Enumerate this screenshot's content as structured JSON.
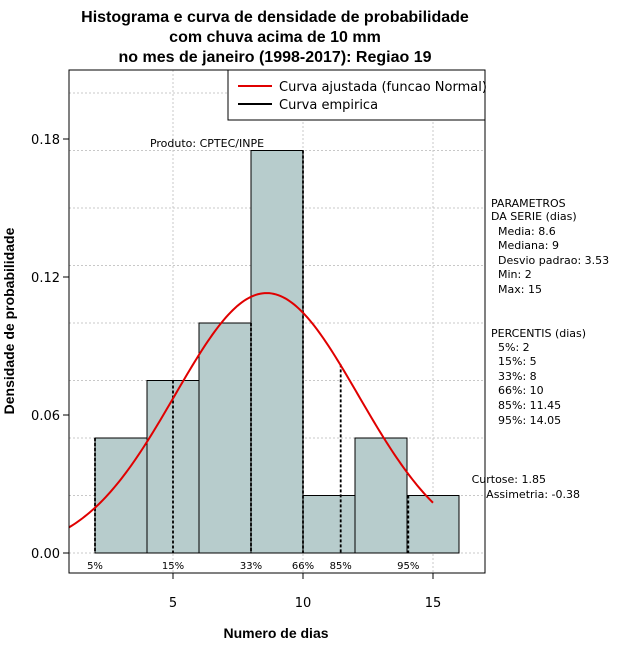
{
  "chart_data": {
    "type": "bar",
    "title_lines": [
      "Histograma e curva de densidade de probabilidade",
      "com chuva acima de 10 mm",
      "no mes de janeiro (1998-2017): Regiao 19"
    ],
    "xlabel": "Numero de dias",
    "ylabel": "Densidade de probabilidade",
    "xlim": [
      1,
      17
    ],
    "ylim": [
      0,
      0.21
    ],
    "x_ticks": [
      5,
      10,
      15
    ],
    "y_ticks": [
      0.0,
      0.06,
      0.12,
      0.18
    ],
    "y_tick_labels": [
      "0.00",
      "0.06",
      "0.12",
      "0.18"
    ],
    "grid": true,
    "bins": [
      {
        "from": 2,
        "to": 4,
        "value": 0.05
      },
      {
        "from": 4,
        "to": 6,
        "value": 0.075
      },
      {
        "from": 6,
        "to": 8,
        "value": 0.1
      },
      {
        "from": 8,
        "to": 10,
        "value": 0.175
      },
      {
        "from": 10,
        "to": 12,
        "value": 0.025
      },
      {
        "from": 12,
        "to": 14,
        "value": 0.05
      },
      {
        "from": 14,
        "to": 16,
        "value": 0.025
      }
    ],
    "bar_color": "#b7cccc",
    "normal_curve": {
      "mean": 8.6,
      "sd": 3.53,
      "color": "#e00000",
      "x_range": [
        1,
        15
      ]
    },
    "percentile_lines": [
      {
        "label": "5%",
        "x": 2,
        "y": 0.05
      },
      {
        "label": "15%",
        "x": 5,
        "y": 0.075
      },
      {
        "label": "33%",
        "x": 8,
        "y": 0.1
      },
      {
        "label": "66%",
        "x": 10,
        "y": 0.175
      },
      {
        "label": "85%",
        "x": 11.45,
        "y": 0.082
      },
      {
        "label": "95%",
        "x": 14.05,
        "y": 0.025
      }
    ],
    "legend": {
      "position": "top-right",
      "items": [
        {
          "label": "Curva ajustada (funcao Normal)",
          "color": "#e00000"
        },
        {
          "label": "Curva empirica",
          "color": "#000000"
        }
      ]
    },
    "annotation": "Produto: CPTEC/INPE",
    "stats_params": {
      "heading": [
        "PARAMETROS",
        "DA SERIE (dias)"
      ],
      "lines": [
        "Media: 8.6",
        "Mediana: 9",
        "Desvio padrao: 3.53",
        "Min: 2",
        "Max: 15"
      ]
    },
    "stats_percentis": {
      "heading": "PERCENTIS (dias)",
      "lines": [
        "5%: 2",
        "15%: 5",
        "33%: 8",
        "66%: 10",
        "85%: 11.45",
        "95%: 14.05"
      ]
    },
    "stats_shape": [
      "Curtose: 1.85",
      "Assimetria: -0.38"
    ]
  }
}
